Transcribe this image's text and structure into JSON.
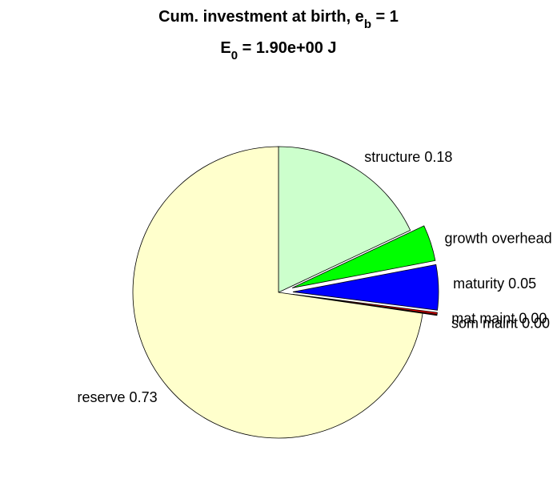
{
  "chart_data": {
    "type": "pie",
    "title": {
      "line1_main": "Cum. investment at birth, e",
      "line1_sub": "b",
      "line1_tail": " = 1",
      "line2_main": "E",
      "line2_sub": "0",
      "line2_tail": " = 1.90e+00 J"
    },
    "slices": [
      {
        "label": "structure 0.18",
        "value": 0.18,
        "color": "#ccffcc",
        "exploded": false
      },
      {
        "label": "growth overhead",
        "value": 0.04,
        "color": "#00ff00",
        "exploded": true
      },
      {
        "label": "maturity 0.05",
        "value": 0.05,
        "color": "#0000ff",
        "exploded": true
      },
      {
        "label": "mat maint 0.00",
        "value": 0.002,
        "color": "#ff0000",
        "exploded": true
      },
      {
        "label": "som maint 0.00",
        "value": 0.001,
        "color": "#800000",
        "exploded": true
      },
      {
        "label": "reserve 0.73",
        "value": 0.727,
        "color": "#ffffcc",
        "exploded": false
      }
    ]
  }
}
